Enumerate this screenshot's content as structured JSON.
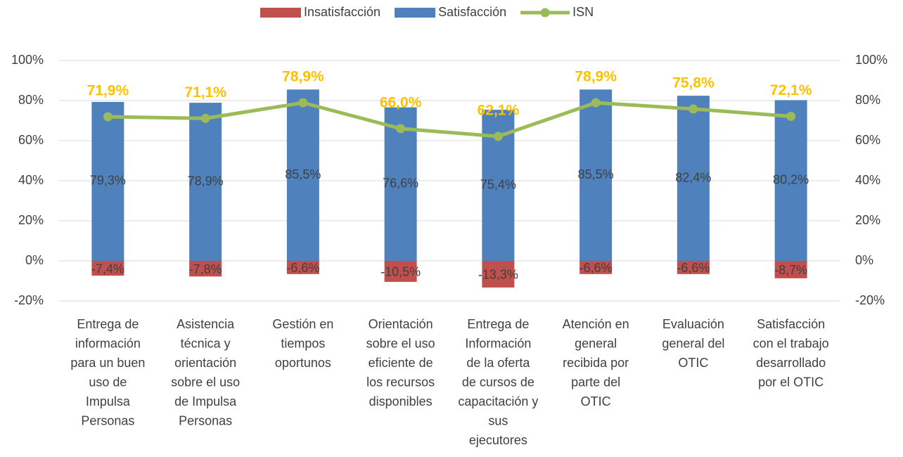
{
  "chart_data": {
    "type": "bar_line",
    "categories": [
      [
        "Entrega de",
        "información",
        "para un buen",
        "uso de",
        "Impulsa",
        "Personas"
      ],
      [
        "Asistencia",
        "técnica y",
        "orientación",
        "sobre el uso",
        "de Impulsa",
        "Personas"
      ],
      [
        "Gestión en",
        "tiempos",
        "oportunos"
      ],
      [
        "Orientación",
        "sobre el uso",
        "eficiente de",
        "los recursos",
        "disponibles"
      ],
      [
        "Entrega de",
        "Información",
        "de la oferta",
        "de cursos de",
        "capacitación y",
        "sus",
        "ejecutores"
      ],
      [
        "Atención en",
        "general",
        "recibida por",
        "parte del",
        "OTIC"
      ],
      [
        "Evaluación",
        "general del",
        "OTIC"
      ],
      [
        "Satisfacción",
        "con el trabajo",
        "desarrollado",
        "por el OTIC"
      ]
    ],
    "series": [
      {
        "name": "Insatisfacción",
        "kind": "bar",
        "color": "#c0504d",
        "values": [
          -7.4,
          -7.8,
          -6.6,
          -10.5,
          -13.3,
          -6.6,
          -6.6,
          -8.7
        ],
        "value_labels": [
          "-7,4%",
          "-7,8%",
          "-6,6%",
          "-10,5%",
          "-13,3%",
          "-6,6%",
          "-6,6%",
          "-8,7%"
        ]
      },
      {
        "name": "Satisfacción",
        "kind": "bar",
        "color": "#4f81bd",
        "values": [
          79.3,
          78.9,
          85.5,
          76.6,
          75.4,
          85.5,
          82.4,
          80.2
        ],
        "value_labels": [
          "79,3%",
          "78,9%",
          "85,5%",
          "76,6%",
          "75,4%",
          "85,5%",
          "82,4%",
          "80,2%"
        ]
      },
      {
        "name": "ISN",
        "kind": "line",
        "color": "#9bbb59",
        "values": [
          71.9,
          71.1,
          78.9,
          66.0,
          62.1,
          78.9,
          75.8,
          72.1
        ],
        "value_labels": [
          "71,9%",
          "71,1%",
          "78,9%",
          "66,0%",
          "62,1%",
          "78,9%",
          "75,8%",
          "72,1%"
        ]
      }
    ],
    "ylim": [
      -20,
      100
    ],
    "yticks": [
      {
        "value": -20,
        "label": "-20%"
      },
      {
        "value": 0,
        "label": "0%"
      },
      {
        "value": 20,
        "label": "20%"
      },
      {
        "value": 40,
        "label": "40%"
      },
      {
        "value": 60,
        "label": "60%"
      },
      {
        "value": 80,
        "label": "80%"
      },
      {
        "value": 100,
        "label": "100%"
      }
    ],
    "y2lim": [
      -20,
      100
    ],
    "y2ticks": [
      {
        "value": -20,
        "label": "-20%"
      },
      {
        "value": 0,
        "label": "0%"
      },
      {
        "value": 20,
        "label": "20%"
      },
      {
        "value": 40,
        "label": "40%"
      },
      {
        "value": 60,
        "label": "60%"
      },
      {
        "value": 80,
        "label": "80%"
      },
      {
        "value": 100,
        "label": "100%"
      }
    ],
    "grid": true,
    "legend": "top",
    "isn_label_color": "#ffc000"
  }
}
